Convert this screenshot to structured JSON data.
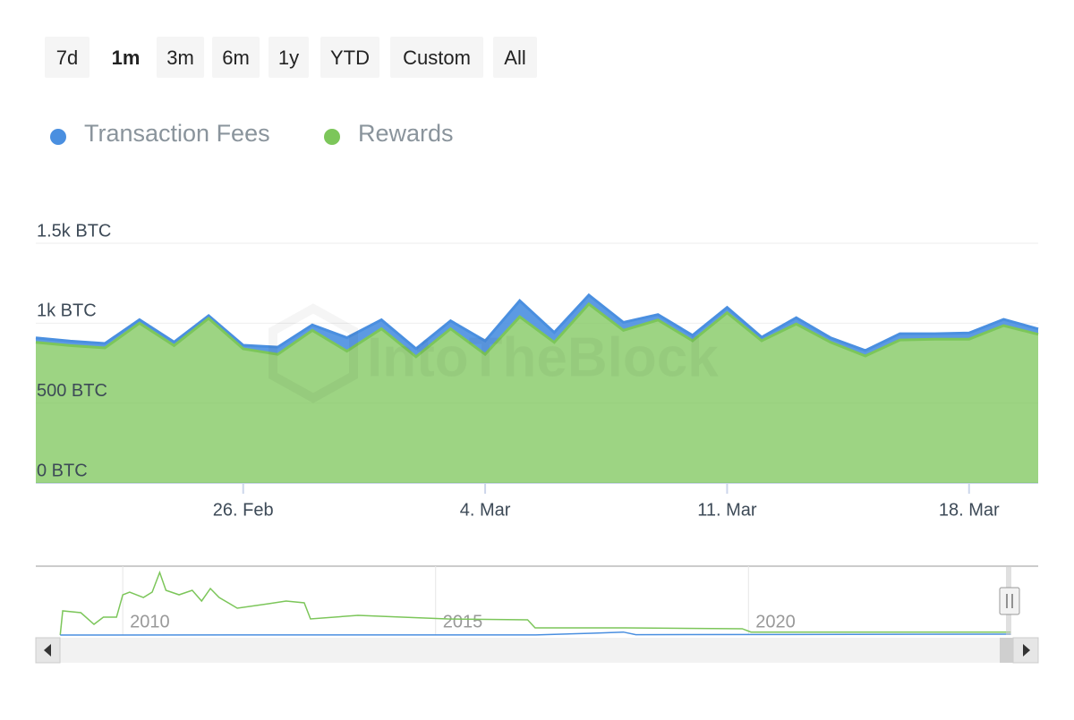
{
  "range_buttons": {
    "labels": [
      "7d",
      "1m",
      "3m",
      "6m",
      "1y",
      "YTD",
      "Custom",
      "All"
    ],
    "selected_index": 1
  },
  "chart_data": [
    {
      "type": "area",
      "stacked": true,
      "watermark": "IntoTheBlock",
      "categories": [
        null,
        null,
        null,
        null,
        null,
        null,
        "26. Feb",
        null,
        null,
        null,
        null,
        null,
        null,
        "4. Mar",
        null,
        null,
        null,
        null,
        null,
        null,
        "11. Mar",
        null,
        null,
        null,
        null,
        null,
        null,
        "18. Mar",
        null,
        null
      ],
      "series": [
        {
          "name": "Transaction Fees",
          "color": "#4a8fe0",
          "values": [
            28,
            28,
            28,
            22,
            22,
            17,
            22,
            45,
            34,
            84,
            56,
            50,
            50,
            84,
            101,
            62,
            56,
            50,
            34,
            34,
            34,
            22,
            39,
            28,
            34,
            39,
            34,
            39,
            39,
            34
          ]
        },
        {
          "name": "Rewards",
          "color": "#7cc65a",
          "values": [
            880,
            860,
            845,
            1000,
            860,
            1030,
            840,
            805,
            955,
            825,
            965,
            790,
            965,
            805,
            1040,
            880,
            1120,
            955,
            1020,
            890,
            1065,
            890,
            995,
            880,
            795,
            895,
            900,
            900,
            985,
            930
          ]
        }
      ],
      "ylim": [
        0,
        1500
      ],
      "yticks": [
        {
          "value": 0,
          "label": "0 BTC"
        },
        {
          "value": 500,
          "label": "500 BTC"
        },
        {
          "value": 1000,
          "label": "1k BTC"
        },
        {
          "value": 1500,
          "label": "1.5k BTC"
        }
      ],
      "grid": true,
      "legend": "top-left"
    },
    {
      "type": "line",
      "xlim": [
        2008.61,
        2024.63
      ],
      "xticks": [
        2010,
        2015,
        2020
      ],
      "ylim": [
        0,
        12600
      ],
      "grid": true,
      "series": [
        {
          "color": "#7cc65a",
          "x": [
            2009.0,
            2009.04,
            2009.33,
            2009.54,
            2009.69,
            2009.9,
            2010.0,
            2010.11,
            2010.33,
            2010.47,
            2010.59,
            2010.69,
            2010.9,
            2011.11,
            2011.26,
            2011.4,
            2011.54,
            2011.83,
            2012.33,
            2012.61,
            2012.9,
            2013.0,
            2013.76,
            2014.47,
            2015.19,
            2016.47,
            2016.59,
            2018.04,
            2019.9,
            2020.04,
            2022.33,
            2024.19
          ],
          "values": [
            0,
            4420,
            4090,
            1960,
            3270,
            3270,
            7360,
            7850,
            6870,
            7850,
            11450,
            8180,
            7360,
            8180,
            6220,
            8510,
            6870,
            4910,
            5730,
            6220,
            5890,
            2950,
            3600,
            3270,
            2950,
            2780,
            1310,
            1310,
            1150,
            540,
            540,
            540
          ]
        },
        {
          "color": "#4a8fe0",
          "x": [
            2009.0,
            2016.6,
            2017.5,
            2018.0,
            2018.2,
            2024.19
          ],
          "values": [
            0,
            30,
            330,
            540,
            70,
            160
          ]
        }
      ]
    }
  ]
}
